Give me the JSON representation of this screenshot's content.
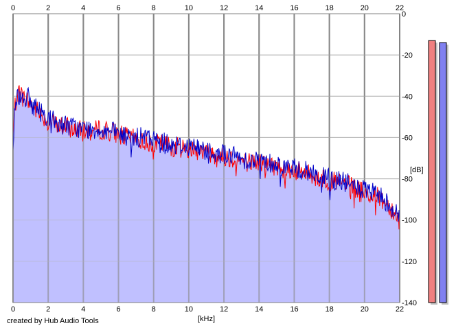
{
  "chart_data": {
    "type": "area",
    "x_unit": "[kHz]",
    "y_unit": "[dB]",
    "x_ticks": [
      0,
      2,
      4,
      6,
      8,
      10,
      12,
      14,
      16,
      18,
      20,
      22
    ],
    "y_ticks": [
      0,
      -20,
      -40,
      -60,
      -80,
      -100,
      -120,
      -140
    ],
    "xlim": [
      0,
      22
    ],
    "ylim": [
      -140,
      0
    ],
    "grid": true,
    "series": [
      {
        "color": "#ff0000",
        "x": [
          0,
          0.1,
          0.3,
          0.5,
          0.8,
          1,
          1.5,
          2,
          2.5,
          3,
          3.5,
          4,
          4.5,
          5,
          5.5,
          6,
          6.5,
          7,
          7.5,
          8,
          8.5,
          9,
          9.5,
          10,
          10.5,
          11,
          11.5,
          12,
          12.5,
          13,
          13.5,
          14,
          14.5,
          15,
          15.5,
          16,
          16.5,
          17,
          17.5,
          18,
          18.5,
          19,
          19.5,
          20,
          20.5,
          21,
          21.5,
          22
        ],
        "y": [
          -60,
          -45,
          -37,
          -40,
          -42,
          -44,
          -48,
          -52,
          -54,
          -55,
          -56,
          -57,
          -57,
          -56,
          -57,
          -58,
          -60,
          -61,
          -62,
          -63,
          -63,
          -64,
          -65,
          -65,
          -66,
          -67,
          -68,
          -69,
          -70,
          -71,
          -72,
          -72,
          -73,
          -74,
          -75,
          -76,
          -77,
          -78,
          -80,
          -81,
          -82,
          -83,
          -85,
          -87,
          -88,
          -90,
          -94,
          -100
        ]
      },
      {
        "color": "#0000c8",
        "x": [
          0,
          0.1,
          0.3,
          0.5,
          0.8,
          1,
          1.5,
          2,
          2.5,
          3,
          3.5,
          4,
          4.5,
          5,
          5.5,
          6,
          6.5,
          7,
          7.5,
          8,
          8.5,
          9,
          9.5,
          10,
          10.5,
          11,
          11.5,
          12,
          12.5,
          13,
          13.5,
          14,
          14.5,
          15,
          15.5,
          16,
          16.5,
          17,
          17.5,
          18,
          18.5,
          19,
          19.5,
          20,
          20.5,
          21,
          21.5,
          22
        ],
        "y": [
          -65,
          -44,
          -39,
          -41,
          -40,
          -43,
          -47,
          -50,
          -53,
          -54,
          -55,
          -56,
          -56,
          -56,
          -57,
          -58,
          -60,
          -60,
          -60,
          -61,
          -62,
          -63,
          -64,
          -64,
          -65,
          -66,
          -67,
          -68,
          -69,
          -70,
          -71,
          -71,
          -72,
          -73,
          -74,
          -75,
          -76,
          -77,
          -79,
          -80,
          -81,
          -82,
          -84,
          -86,
          -87,
          -89,
          -93,
          -99
        ]
      }
    ],
    "fill_color": "#c0c0ff",
    "level_meters": [
      {
        "color": "#f08080",
        "level_db": -13
      },
      {
        "color": "#8080f0",
        "level_db": -14
      }
    ]
  },
  "credit": "created by Hub Audio Tools"
}
